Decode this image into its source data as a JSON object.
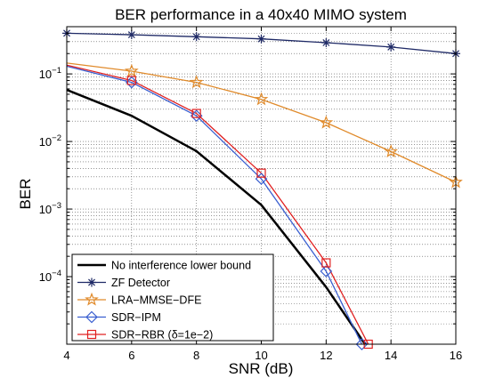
{
  "chart_data": {
    "type": "line",
    "title": "BER performance in a 40x40 MIMO system",
    "xlabel": "SNR (dB)",
    "ylabel": "BER",
    "xlim": [
      4,
      16
    ],
    "ylim": [
      1e-05,
      0.5
    ],
    "yscale": "log",
    "grid": "dotted major and minor",
    "xticks": [
      4,
      6,
      8,
      10,
      12,
      14,
      16
    ],
    "yticks": [
      {
        "value": 0.1,
        "base": "10",
        "exp": "−1"
      },
      {
        "value": 0.01,
        "base": "10",
        "exp": "−2"
      },
      {
        "value": 0.001,
        "base": "10",
        "exp": "−3"
      },
      {
        "value": 0.0001,
        "base": "10",
        "exp": "−4"
      }
    ],
    "legend_position": "bottom-left",
    "series": [
      {
        "name": "No interference lower bound",
        "color": "#000000",
        "marker": "none",
        "line_width": 2.5,
        "x": [
          4,
          6,
          8,
          10,
          12,
          13.2
        ],
        "y": [
          0.058,
          0.024,
          0.0072,
          0.00115,
          7e-05,
          1e-05
        ]
      },
      {
        "name": "ZF Detector",
        "color": "#1f2a66",
        "marker": "asterisk",
        "line_width": 1.3,
        "x": [
          4,
          6,
          8,
          10,
          12,
          14,
          16
        ],
        "y": [
          0.4,
          0.38,
          0.355,
          0.33,
          0.29,
          0.25,
          0.2
        ]
      },
      {
        "name": "LRA−MMSE−DFE",
        "color": "#e08a2a",
        "marker": "star",
        "line_width": 1.3,
        "x": [
          4,
          6,
          8,
          10,
          12,
          14,
          16
        ],
        "y": [
          0.145,
          0.11,
          0.075,
          0.042,
          0.019,
          0.0071,
          0.0025
        ]
      },
      {
        "name": "SDR−IPM",
        "color": "#3a5fd0",
        "marker": "diamond",
        "line_width": 1.3,
        "x": [
          4,
          6,
          8,
          10,
          12,
          13.1
        ],
        "y": [
          0.13,
          0.075,
          0.024,
          0.0028,
          0.00012,
          1e-05
        ]
      },
      {
        "name": "SDR−RBR (δ=1e−2)",
        "color": "#e02020",
        "marker": "square",
        "line_width": 1.3,
        "x": [
          4,
          6,
          8,
          10,
          12,
          13.3
        ],
        "y": [
          0.135,
          0.08,
          0.026,
          0.0034,
          0.00016,
          1e-05
        ]
      }
    ]
  }
}
